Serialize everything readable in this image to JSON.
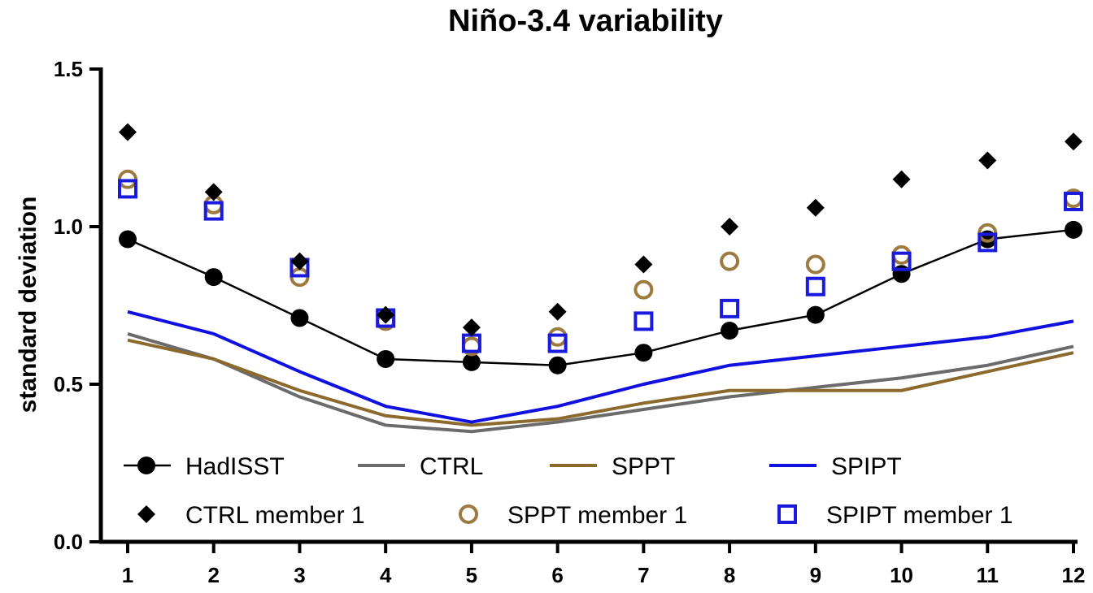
{
  "chart_data": {
    "type": "line",
    "title": "Niño-3.4 variability",
    "xlabel": "",
    "ylabel": "standard deviation",
    "x": [
      1,
      2,
      3,
      4,
      5,
      6,
      7,
      8,
      9,
      10,
      11,
      12
    ],
    "x_tick_labels": [
      "1",
      "2",
      "3",
      "4",
      "5",
      "6",
      "7",
      "8",
      "9",
      "10",
      "11",
      "12"
    ],
    "xlim": [
      1,
      12
    ],
    "ylim": [
      0.0,
      1.5
    ],
    "y_ticks": [
      0.0,
      0.5,
      1.0,
      1.5
    ],
    "y_tick_labels": [
      "0.0",
      "0.5",
      "1.0",
      "1.5"
    ],
    "grid": false,
    "legend_position": "bottom",
    "series": [
      {
        "name": "HadISST",
        "style": "line-marker",
        "marker": "circle",
        "color": "#000000",
        "values": [
          0.96,
          0.84,
          0.71,
          0.58,
          0.57,
          0.56,
          0.6,
          0.67,
          0.72,
          0.85,
          0.96,
          0.99
        ]
      },
      {
        "name": "CTRL",
        "style": "line",
        "color": "#6b6b6b",
        "values": [
          0.66,
          0.58,
          0.46,
          0.37,
          0.35,
          0.38,
          0.42,
          0.46,
          0.49,
          0.52,
          0.56,
          0.62
        ]
      },
      {
        "name": "SPPT",
        "style": "line",
        "color": "#8c6a2e",
        "values": [
          0.64,
          0.58,
          0.48,
          0.4,
          0.37,
          0.39,
          0.44,
          0.48,
          0.48,
          0.48,
          0.54,
          0.6
        ]
      },
      {
        "name": "SPIPT",
        "style": "line",
        "color": "#1010e0",
        "values": [
          0.73,
          0.66,
          0.54,
          0.43,
          0.38,
          0.43,
          0.5,
          0.56,
          0.59,
          0.62,
          0.65,
          0.7
        ]
      },
      {
        "name": "CTRL member 1",
        "style": "marker",
        "marker": "diamond",
        "color": "#000000",
        "values": [
          1.3,
          1.11,
          0.89,
          0.72,
          0.68,
          0.73,
          0.88,
          1.0,
          1.06,
          1.15,
          1.21,
          1.27
        ]
      },
      {
        "name": "SPPT member 1",
        "style": "marker",
        "marker": "open-circle",
        "color": "#9c7a40",
        "values": [
          1.15,
          1.07,
          0.84,
          0.7,
          0.62,
          0.65,
          0.8,
          0.89,
          0.88,
          0.91,
          0.98,
          1.09
        ]
      },
      {
        "name": "SPIPT member 1",
        "style": "marker",
        "marker": "open-square",
        "color": "#1a1adc",
        "values": [
          1.12,
          1.05,
          0.87,
          0.71,
          0.63,
          0.63,
          0.7,
          0.74,
          0.81,
          0.89,
          0.95,
          1.08
        ]
      }
    ]
  }
}
